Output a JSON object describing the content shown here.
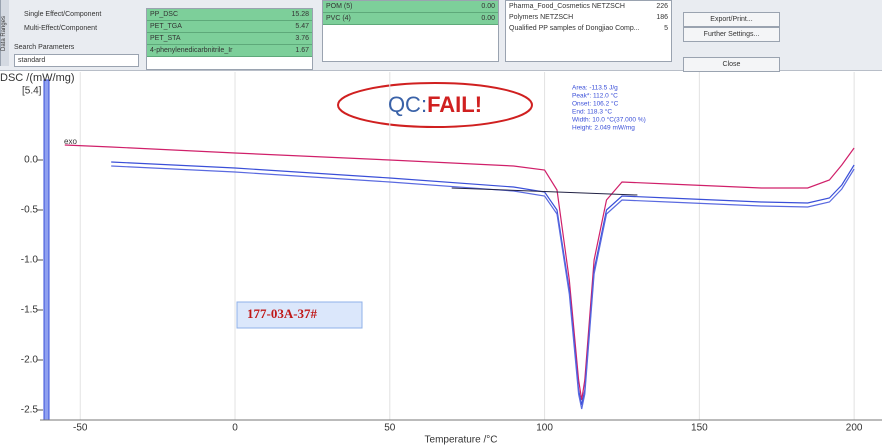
{
  "panel": {
    "tab": "Data Ranges",
    "options": [
      "Single Effect/Component",
      "Multi-Effect/Component"
    ],
    "search_label": "Search Parameters",
    "search_value": "standard",
    "results": [
      [
        "PP_DSC",
        "15.28"
      ],
      [
        "PET_TGA",
        "5.47"
      ],
      [
        "PET_STA",
        "3.76"
      ],
      [
        "4-phenylenedicarbnitrile_Ir",
        "1.67"
      ]
    ],
    "results2": [
      [
        "POM (5)",
        "0.00"
      ],
      [
        "PVC (4)",
        "0.00"
      ]
    ],
    "libraries": [
      [
        "Pharma_Food_Cosmetics NETZSCH",
        "226"
      ],
      [
        "Polymers NETZSCH",
        "186"
      ],
      [
        "Qualified PP samples of Dongjiao Comp...",
        "5"
      ]
    ],
    "buttons": [
      "Export/Print...",
      "Further Settings...",
      "Close"
    ]
  },
  "plot": {
    "y_label": "DSC /(mW/mg)",
    "y_marker": "[5.4]",
    "exo": "exo",
    "x_label": "Temperature /°C",
    "qc_prefix": "QC:",
    "qc_result": "FAIL!",
    "sample": "177-03A-37#",
    "annotation": [
      "Area: -113.5 J/g",
      "Peak*: 112.0 °C",
      "Onset: 106.2 °C",
      "End: 118.3 °C",
      "Width: 10.0 °C(37.000 %)",
      "Height: 2.049 mW/mg"
    ],
    "xlim": [
      -63,
      209
    ],
    "ylim": [
      -2.6,
      0.88
    ],
    "xticks": [
      -50,
      0,
      50,
      100,
      150,
      200
    ],
    "yticks": [
      {
        "value": 0,
        "label": "0.0"
      },
      {
        "value": -0.5,
        "label": "-0.5"
      },
      {
        "value": -1,
        "label": "-1.0"
      },
      {
        "value": -1.5,
        "label": "-1.5"
      },
      {
        "value": -2,
        "label": "-2.0"
      },
      {
        "value": -2.5,
        "label": "-2.5"
      }
    ],
    "curves": [
      {
        "color": "#d0206a",
        "x": [
          -55,
          -40,
          0,
          50,
          90,
          100,
          104,
          108,
          111,
          112,
          113,
          116,
          120,
          125,
          140,
          170,
          185,
          192,
          196,
          200
        ],
        "y": [
          0.15,
          0.13,
          0.07,
          0,
          -0.06,
          -0.1,
          -0.3,
          -1.2,
          -2.2,
          -2.4,
          -2.2,
          -1,
          -0.4,
          -0.22,
          -0.24,
          -0.28,
          -0.28,
          -0.2,
          -0.05,
          0.12
        ]
      },
      {
        "color": "#3a4fd8",
        "x": [
          -40,
          0,
          50,
          90,
          100,
          104,
          108,
          111,
          112,
          113,
          116,
          120,
          125,
          140,
          170,
          185,
          192,
          196,
          200
        ],
        "y": [
          -0.02,
          -0.08,
          -0.18,
          -0.27,
          -0.32,
          -0.5,
          -1.3,
          -2.3,
          -2.45,
          -2.3,
          -1.1,
          -0.5,
          -0.36,
          -0.38,
          -0.42,
          -0.43,
          -0.38,
          -0.25,
          -0.05
        ]
      },
      {
        "color": "#5a6ae0",
        "x": [
          -40,
          0,
          50,
          90,
          100,
          104,
          108,
          111,
          112,
          113,
          116,
          120,
          125,
          140,
          170,
          185,
          192,
          196,
          200
        ],
        "y": [
          -0.06,
          -0.12,
          -0.22,
          -0.31,
          -0.36,
          -0.54,
          -1.34,
          -2.34,
          -2.49,
          -2.34,
          -1.14,
          -0.54,
          -0.4,
          -0.42,
          -0.46,
          -0.47,
          -0.42,
          -0.29,
          -0.09
        ]
      }
    ],
    "baseline": {
      "color": "#222244",
      "x": [
        70,
        130
      ],
      "y": [
        -0.28,
        -0.35
      ]
    }
  }
}
